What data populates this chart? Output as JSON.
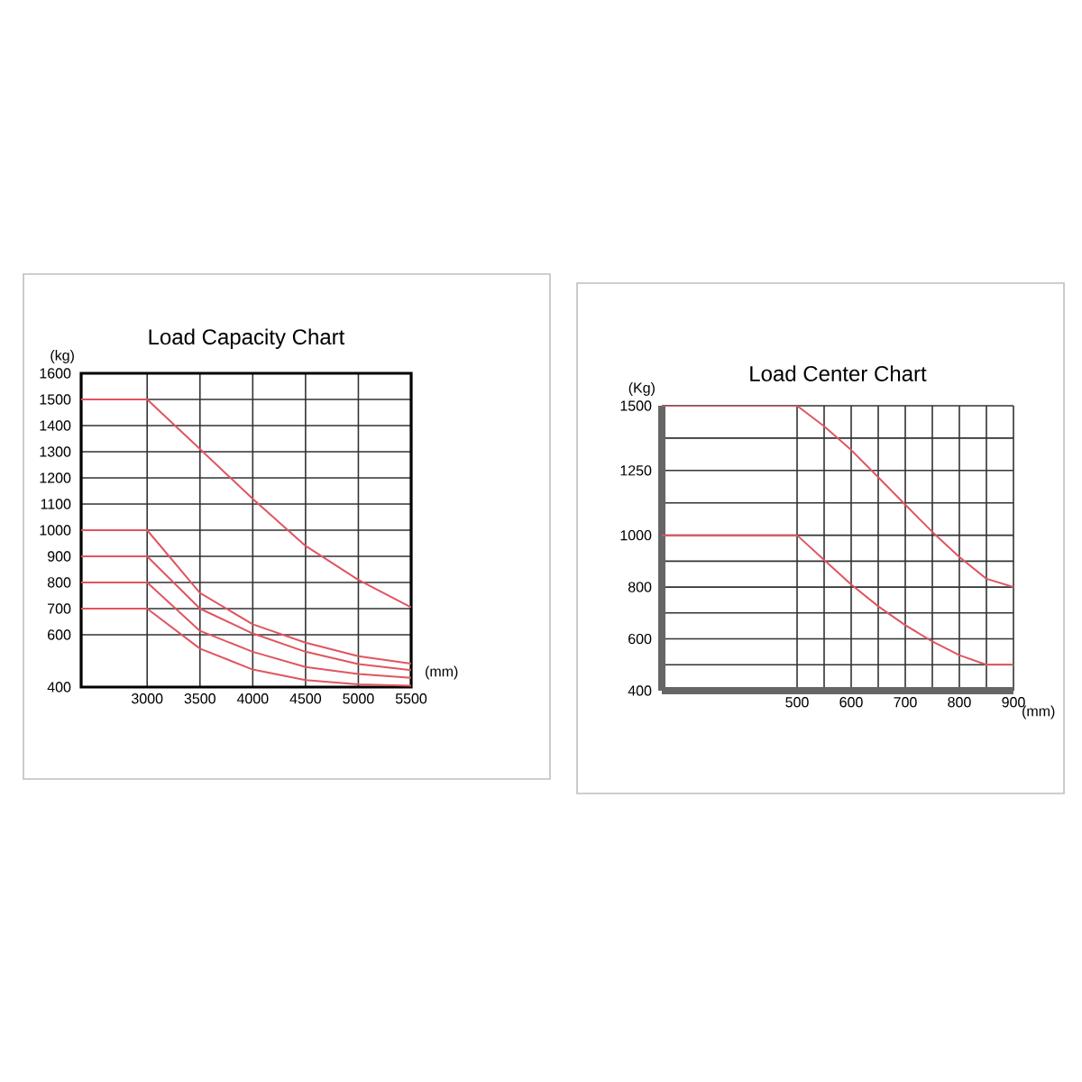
{
  "chart_data": [
    {
      "type": "line",
      "title": "Load Capacity Chart",
      "xlabel": "(mm)",
      "ylabel": "(kg)",
      "xlim": [
        2375,
        5500
      ],
      "ylim": [
        400,
        1600
      ],
      "xticks": [
        3000,
        3500,
        4000,
        4500,
        5000,
        5500
      ],
      "yticks": [
        400,
        600,
        700,
        800,
        900,
        1000,
        1100,
        1200,
        1300,
        1400,
        1500,
        1600
      ],
      "grid": true,
      "marker": "none",
      "line_style": "solid",
      "x": [
        2375,
        3000,
        3500,
        4000,
        4500,
        5000,
        5500
      ],
      "series": [
        {
          "color": "#e05560",
          "values": [
            1500,
            1500,
            1310,
            1120,
            940,
            810,
            705
          ]
        },
        {
          "color": "#e05560",
          "values": [
            1000,
            1000,
            760,
            640,
            570,
            518,
            490
          ]
        },
        {
          "color": "#e05560",
          "values": [
            900,
            900,
            700,
            605,
            535,
            488,
            465
          ]
        },
        {
          "color": "#e05560",
          "values": [
            800,
            800,
            615,
            535,
            477,
            450,
            435
          ]
        },
        {
          "color": "#e05560",
          "values": [
            700,
            700,
            547,
            467,
            427,
            410,
            405
          ]
        }
      ]
    },
    {
      "type": "line",
      "title": "Load Center Chart",
      "xlabel": "(mm)",
      "ylabel": "(Kg)",
      "xlim": [
        250,
        900
      ],
      "ylim": [
        400,
        1500
      ],
      "xticks": [
        500,
        {
          "value": 550,
          "label": null
        },
        600,
        {
          "value": 650,
          "label": null
        },
        700,
        {
          "value": 750,
          "label": null
        },
        800,
        {
          "value": 850,
          "label": null
        },
        900
      ],
      "yticks": [
        400,
        {
          "value": 500,
          "label": null
        },
        600,
        {
          "value": 700,
          "label": null
        },
        800,
        {
          "value": 900,
          "label": null
        },
        1000,
        {
          "value": 1125,
          "label": null
        },
        1250,
        {
          "value": 1375,
          "label": null
        },
        1500
      ],
      "grid": true,
      "marker": "none",
      "line_style": "solid",
      "x": [
        250,
        500,
        550,
        600,
        650,
        700,
        750,
        800,
        850,
        900
      ],
      "series": [
        {
          "color": "#e05560",
          "values": [
            1500,
            1500,
            1421,
            1329,
            1224,
            1118,
            1013,
            916,
            832,
            800
          ]
        },
        {
          "color": "#e05560",
          "values": [
            1000,
            1000,
            905,
            810,
            726,
            653,
            590,
            537,
            500,
            500
          ]
        }
      ]
    }
  ]
}
